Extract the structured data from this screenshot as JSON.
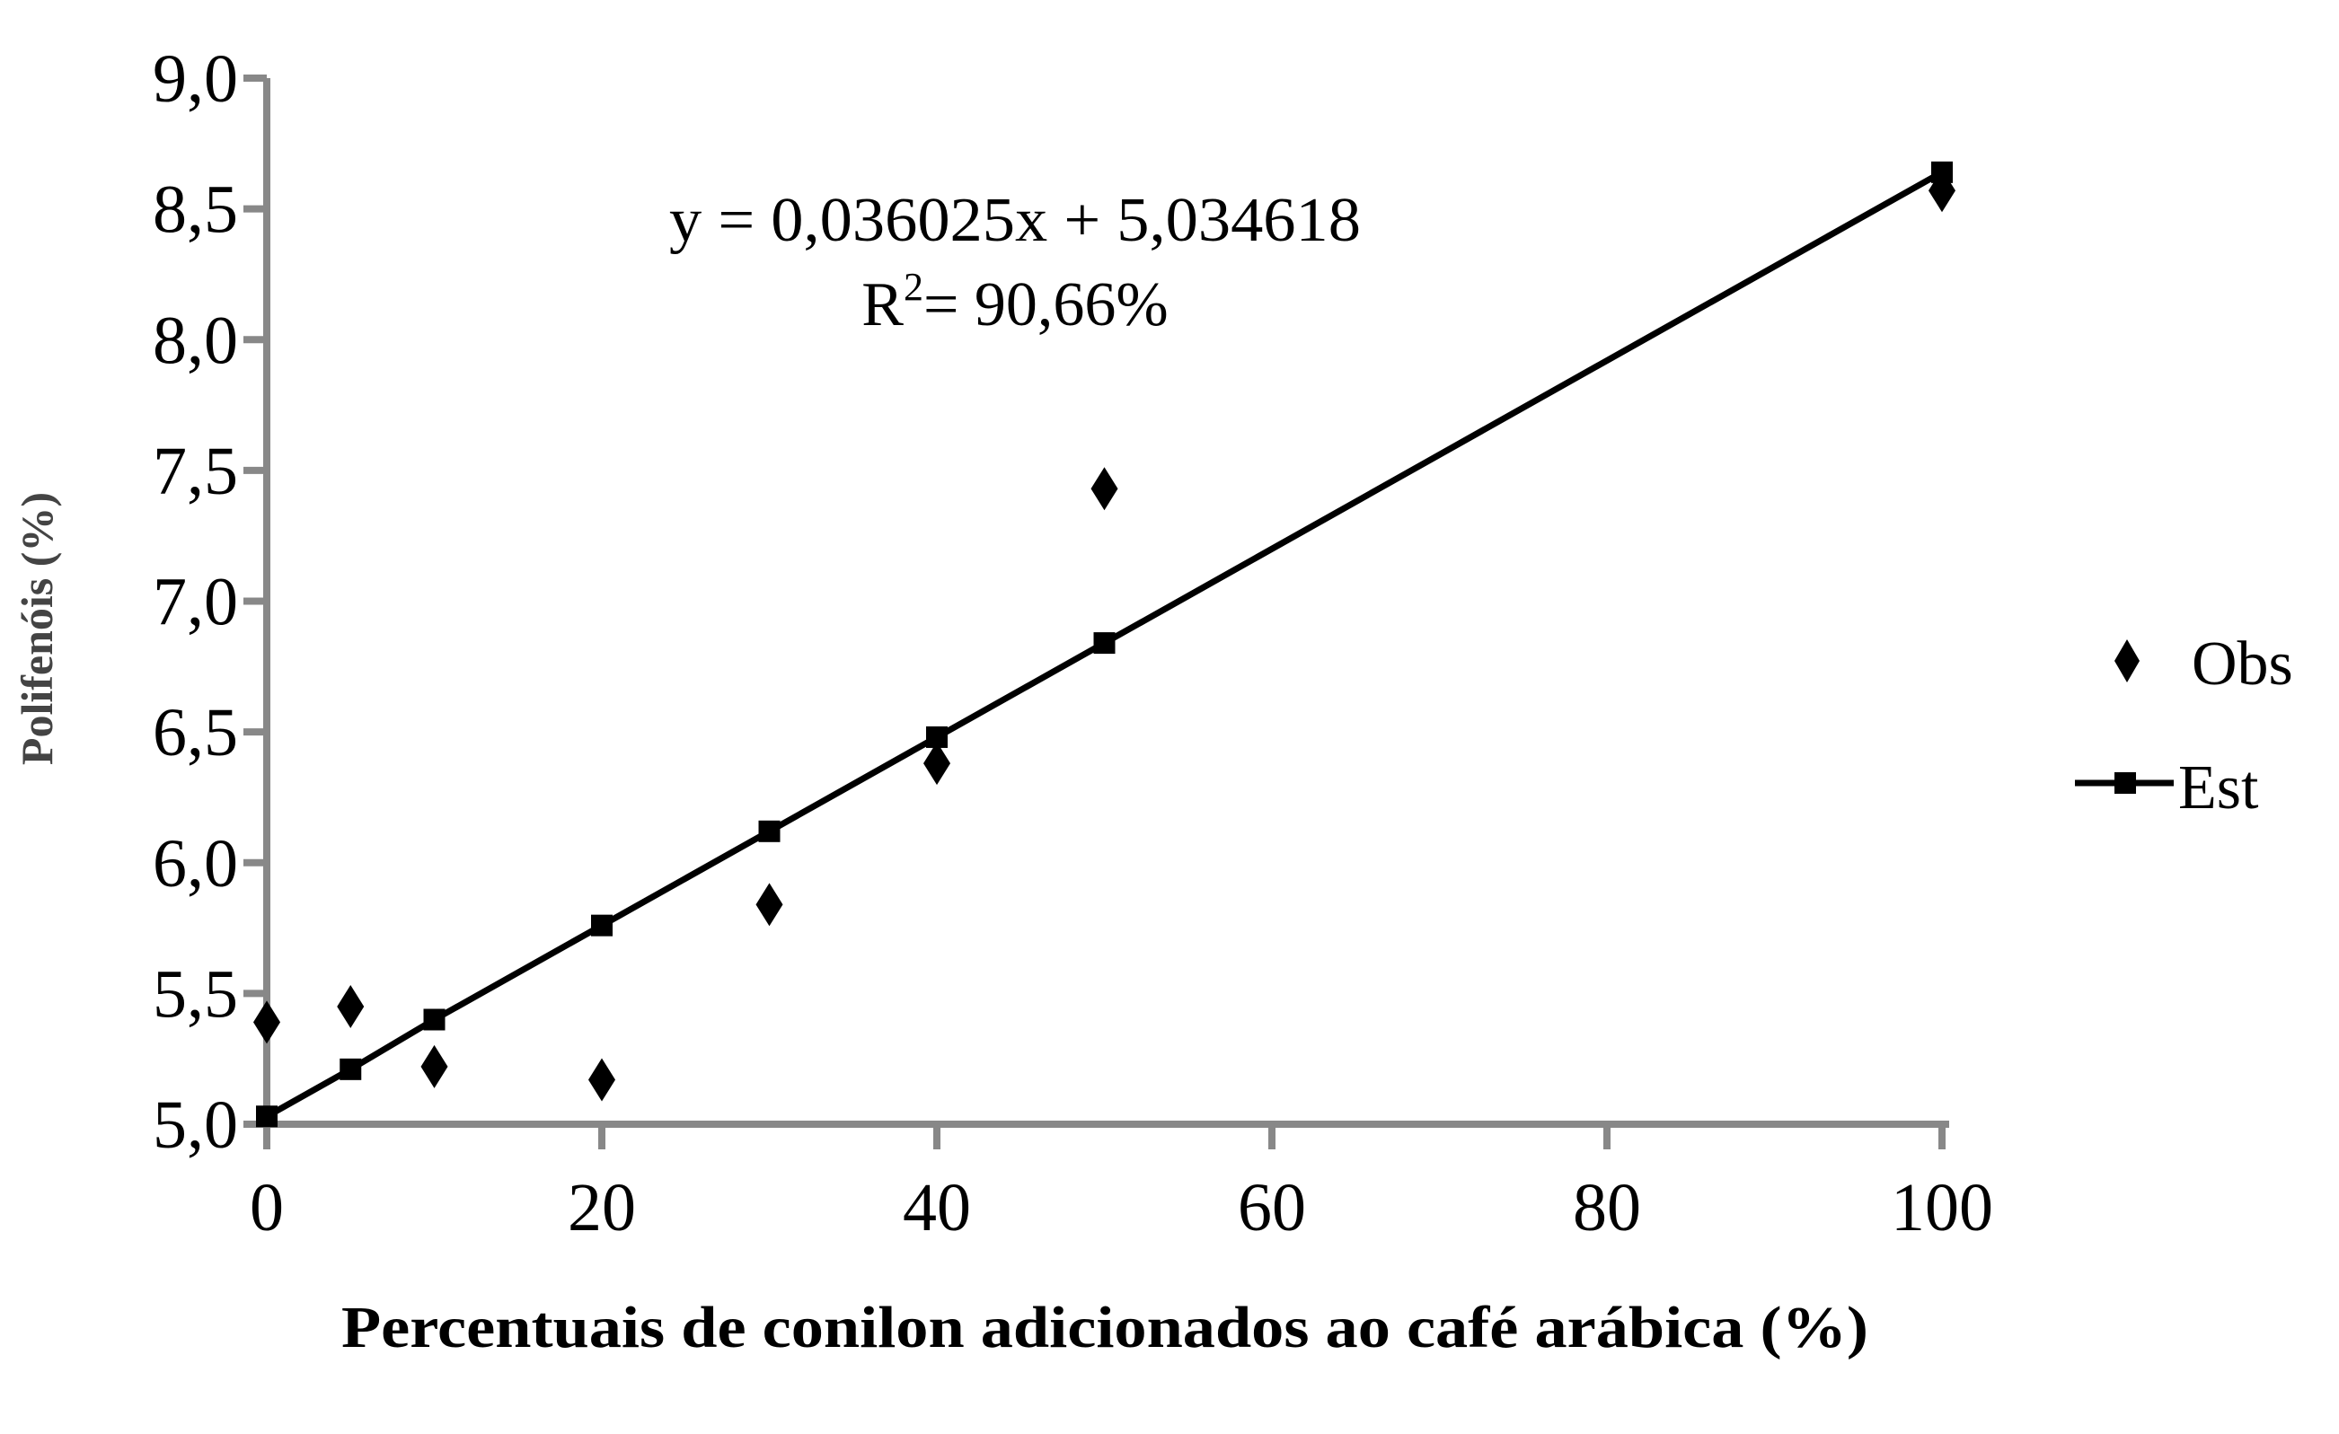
{
  "chart_data": {
    "type": "scatter",
    "title": "",
    "xlabel": "Percentuais de conilon adicionados ao café arábica (%)",
    "ylabel": "Polifenóis (%)",
    "xlim": [
      0,
      100
    ],
    "ylim": [
      5.0,
      9.0
    ],
    "x_ticks": [
      0,
      20,
      40,
      60,
      80,
      100
    ],
    "x_tick_labels": [
      "0",
      "20",
      "40",
      "60",
      "80",
      "100"
    ],
    "y_ticks": [
      5.0,
      5.5,
      6.0,
      6.5,
      7.0,
      7.5,
      8.0,
      8.5,
      9.0
    ],
    "y_tick_labels": [
      "5,0",
      "5,5",
      "6,0",
      "6,5",
      "7,0",
      "7,5",
      "8,0",
      "8,5",
      "9,0"
    ],
    "grid": false,
    "legend_position": "right",
    "series": [
      {
        "name": "Obs",
        "marker": "diamond",
        "x": [
          0,
          5,
          10,
          20,
          30,
          40,
          50,
          100
        ],
        "y": [
          5.39,
          5.45,
          5.22,
          5.17,
          5.84,
          6.38,
          7.43,
          8.57
        ]
      },
      {
        "name": "Est",
        "marker": "square-line",
        "x": [
          0,
          5,
          10,
          20,
          30,
          40,
          50,
          100
        ],
        "y": [
          5.03,
          5.21,
          5.4,
          5.76,
          6.12,
          6.48,
          6.84,
          8.64
        ]
      }
    ],
    "annotations": {
      "equation": "y = 0,036025x + 5,034618",
      "r2_prefix": "R",
      "r2_sup": "2",
      "r2_value": "= 90,66%"
    },
    "colors": {
      "axis": "#888888",
      "marks": "#000000"
    }
  }
}
